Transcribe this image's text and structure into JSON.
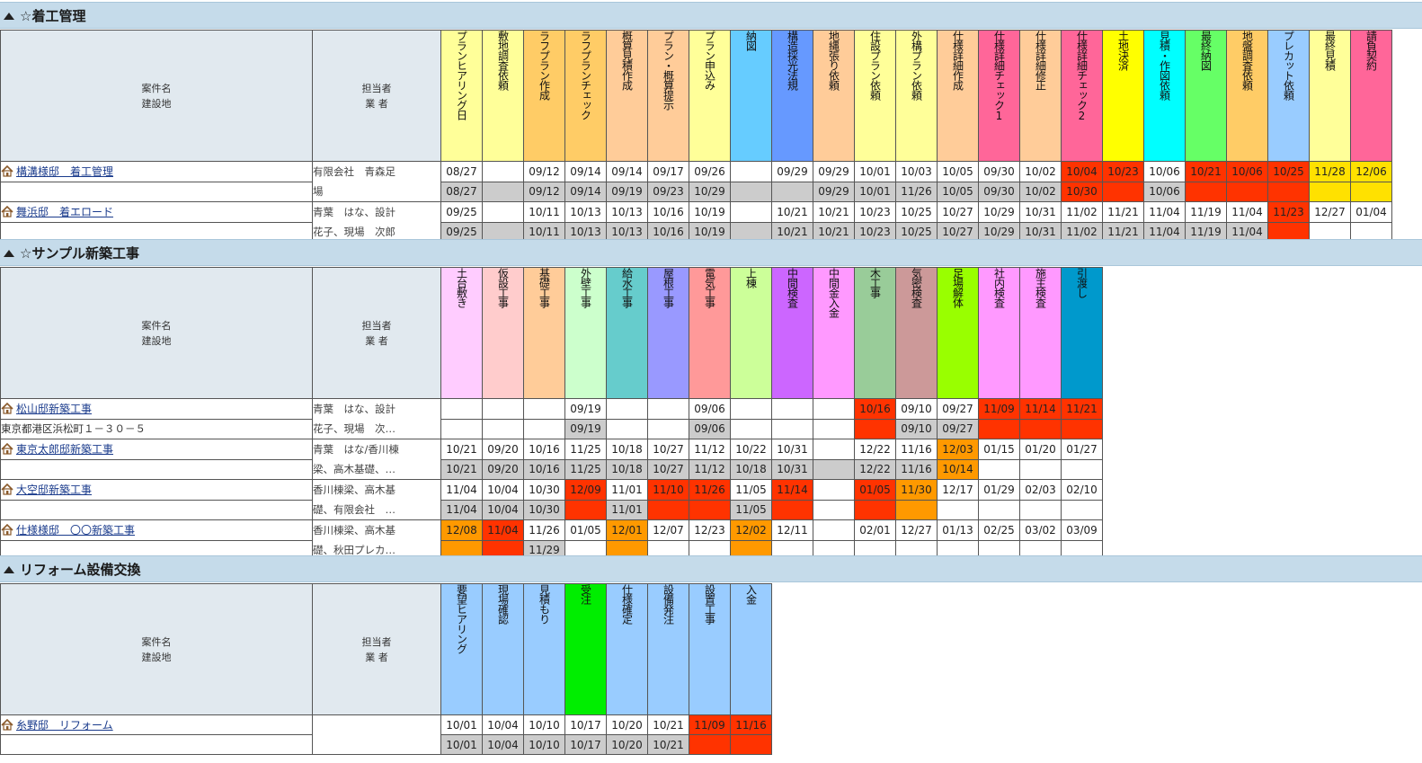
{
  "header_labels": {
    "case": "案件名",
    "site": "建設地",
    "mgr": "担当者",
    "vendor": "業 者"
  },
  "sections": [
    {
      "title": "☆着工管理",
      "stages": [
        {
          "label": "プランヒアリング日",
          "color": "#ffff99"
        },
        {
          "label": "敷地調査依頼",
          "color": "#ffff99"
        },
        {
          "label": "ラフプラン作成",
          "color": "#ffcc66"
        },
        {
          "label": "ラフプランチェック",
          "color": "#ffcc66"
        },
        {
          "label": "概算見積作成",
          "color": "#ffcc99"
        },
        {
          "label": "プラン・概算提示",
          "color": "#ffcc99"
        },
        {
          "label": "プラン申込み",
          "color": "#ffff99"
        },
        {
          "label": "納図",
          "color": "#66ccff"
        },
        {
          "label": "構造採光法規",
          "color": "#6699ff"
        },
        {
          "label": "地縄張り依頼",
          "color": "#ffcc99"
        },
        {
          "label": "住設プラン依頼",
          "color": "#ffff99"
        },
        {
          "label": "外構プラン依頼",
          "color": "#ffff99"
        },
        {
          "label": "仕様詳細作成",
          "color": "#ffcc99"
        },
        {
          "label": "仕様詳細チェック1",
          "color": "#ff6699"
        },
        {
          "label": "仕様詳細修正",
          "color": "#ffcc99"
        },
        {
          "label": "仕様詳細チェック2",
          "color": "#ff6699"
        },
        {
          "label": "土地決済",
          "color": "#ffff00"
        },
        {
          "label": "見積・作図依頼",
          "color": "#00ffff"
        },
        {
          "label": "最終納図",
          "color": "#66ff66"
        },
        {
          "label": "地盤調査依頼",
          "color": "#ffcc66"
        },
        {
          "label": "プレカット依頼",
          "color": "#99ccff"
        },
        {
          "label": "最終見積",
          "color": "#ffff99"
        },
        {
          "label": "請負契約",
          "color": "#ff6699"
        }
      ],
      "projects": [
        {
          "name": "構溝様邸　着工管理",
          "address": "",
          "manager": "有限会社　青森足\n場",
          "plan": [
            "08/27",
            "",
            "09/12",
            "09/14",
            "09/14",
            "09/17",
            "09/26",
            "",
            "09/29",
            "09/29",
            "10/01",
            "10/03",
            "10/05",
            "09/30",
            "10/02",
            "10/04",
            "10/23",
            "10/06",
            "10/21",
            "10/06",
            "10/25",
            "11/28",
            "12/06"
          ],
          "plan_status": [
            "",
            "",
            "",
            "",
            "",
            "",
            "",
            "",
            "",
            "",
            "",
            "",
            "",
            "",
            "",
            "late",
            "late",
            "",
            "late",
            "late",
            "late",
            "pend",
            "pend"
          ],
          "actual": [
            "08/27",
            "",
            "09/12",
            "09/14",
            "09/19",
            "09/23",
            "10/29",
            "",
            "",
            "09/29",
            "10/01",
            "11/26",
            "10/05",
            "09/30",
            "10/02",
            "10/30",
            "",
            "10/06",
            "",
            "",
            "",
            "",
            ""
          ],
          "actual_status": [
            "act",
            "act",
            "act",
            "act",
            "act",
            "act",
            "act",
            "act",
            "act",
            "act",
            "act",
            "act",
            "act",
            "act",
            "act",
            "late",
            "late",
            "act",
            "late",
            "late",
            "late",
            "pend",
            "pend"
          ]
        },
        {
          "name": "舞浜邸　着エロード",
          "address": "",
          "manager": "青葉　はな、設計\n花子、現場　次郎",
          "plan": [
            "09/25",
            "",
            "10/11",
            "10/13",
            "10/13",
            "10/16",
            "10/19",
            "",
            "10/21",
            "10/21",
            "10/23",
            "10/25",
            "10/27",
            "10/29",
            "10/31",
            "11/02",
            "11/21",
            "11/04",
            "11/19",
            "11/04",
            "11/23",
            "12/27",
            "01/04"
          ],
          "plan_status": [
            "",
            "",
            "",
            "",
            "",
            "",
            "",
            "",
            "",
            "",
            "",
            "",
            "",
            "",
            "",
            "",
            "",
            "",
            "",
            "",
            "late",
            "",
            ""
          ],
          "actual": [
            "09/25",
            "",
            "10/11",
            "10/13",
            "10/13",
            "10/16",
            "10/19",
            "",
            "10/21",
            "10/21",
            "10/23",
            "10/25",
            "10/27",
            "10/29",
            "10/31",
            "11/02",
            "11/21",
            "11/04",
            "11/19",
            "11/04",
            "",
            "",
            ""
          ],
          "actual_status": [
            "act",
            "act",
            "act",
            "act",
            "act",
            "act",
            "act",
            "act",
            "act",
            "act",
            "act",
            "act",
            "act",
            "act",
            "act",
            "act",
            "act",
            "act",
            "act",
            "act",
            "late",
            "",
            ""
          ]
        }
      ]
    },
    {
      "title": "☆サンプル新築工事",
      "stages": [
        {
          "label": "土台敷き",
          "color": "#ffccff"
        },
        {
          "label": "仮設工事",
          "color": "#ffcccc"
        },
        {
          "label": "基礎工事",
          "color": "#ffcc99"
        },
        {
          "label": "外壁工事",
          "color": "#ccffcc"
        },
        {
          "label": "給水工事",
          "color": "#66cccc"
        },
        {
          "label": "屋根工事",
          "color": "#9999ff"
        },
        {
          "label": "電気工事",
          "color": "#ff9999"
        },
        {
          "label": "上棟",
          "color": "#ccff99"
        },
        {
          "label": "中間検査",
          "color": "#cc66ff"
        },
        {
          "label": "中間金入金",
          "color": "#ff99ff"
        },
        {
          "label": "木工事",
          "color": "#99cc99"
        },
        {
          "label": "気密検査",
          "color": "#cc9999"
        },
        {
          "label": "足場解体",
          "color": "#99ff00"
        },
        {
          "label": "社内検査",
          "color": "#ff99ff"
        },
        {
          "label": "施主検査",
          "color": "#ff99ff"
        },
        {
          "label": "引渡し",
          "color": "#0099cc"
        }
      ],
      "projects": [
        {
          "name": "松山邸新築工事",
          "address": "東京都港区浜松町１－３０－５",
          "manager": "青葉　はな、設計\n花子、現場　次…",
          "plan": [
            "",
            "",
            "",
            "09/19",
            "",
            "",
            "09/06",
            "",
            "",
            "",
            "10/16",
            "09/10",
            "09/27",
            "11/09",
            "11/14",
            "11/21"
          ],
          "plan_status": [
            "",
            "",
            "",
            "",
            "",
            "",
            "",
            "",
            "",
            "",
            "late",
            "",
            "",
            "late",
            "late",
            "late"
          ],
          "actual": [
            "",
            "",
            "",
            "09/19",
            "",
            "",
            "09/06",
            "",
            "",
            "",
            "",
            "09/10",
            "09/27",
            "",
            "",
            ""
          ],
          "actual_status": [
            "",
            "",
            "",
            "act",
            "",
            "",
            "act",
            "",
            "",
            "",
            "late",
            "act",
            "act",
            "late",
            "late",
            "late"
          ]
        },
        {
          "name": "東京太郎邸新築工事",
          "address": "",
          "manager": "青葉　はな/香川棟\n梁、高木基礎、…",
          "plan": [
            "10/21",
            "09/20",
            "10/16",
            "11/25",
            "10/18",
            "10/27",
            "11/12",
            "10/22",
            "10/31",
            "",
            "12/22",
            "11/16",
            "12/03",
            "01/15",
            "01/20",
            "01/27"
          ],
          "plan_status": [
            "",
            "",
            "",
            "",
            "",
            "",
            "",
            "",
            "",
            "",
            "",
            "",
            "warn",
            "",
            "",
            ""
          ],
          "actual": [
            "10/21",
            "09/20",
            "10/16",
            "11/25",
            "10/18",
            "10/27",
            "11/12",
            "10/18",
            "10/31",
            "",
            "12/22",
            "11/16",
            "10/14",
            "",
            "",
            ""
          ],
          "actual_status": [
            "act",
            "act",
            "act",
            "act",
            "act",
            "act",
            "act",
            "act",
            "act",
            "act",
            "act",
            "act",
            "warn",
            "",
            "",
            ""
          ]
        },
        {
          "name": "大空邸新築工事",
          "address": "",
          "manager": "香川棟梁、高木基\n礎、有限会社　…",
          "plan": [
            "11/04",
            "10/04",
            "10/30",
            "12/09",
            "11/01",
            "11/10",
            "11/26",
            "11/05",
            "11/14",
            "",
            "01/05",
            "11/30",
            "12/17",
            "01/29",
            "02/03",
            "02/10"
          ],
          "plan_status": [
            "",
            "",
            "",
            "late",
            "",
            "late",
            "late",
            "",
            "late",
            "",
            "late",
            "warn",
            "",
            "",
            "",
            ""
          ],
          "actual": [
            "11/04",
            "10/04",
            "10/30",
            "",
            "11/01",
            "",
            "",
            "11/05",
            "",
            "",
            "",
            "",
            "",
            "",
            "",
            ""
          ],
          "actual_status": [
            "act",
            "act",
            "act",
            "late",
            "act",
            "late",
            "late",
            "act",
            "late",
            "",
            "late",
            "warn",
            "",
            "",
            "",
            ""
          ]
        },
        {
          "name": "仕様様邸　〇〇新築工事",
          "address": "",
          "manager": "香川棟梁、高木基\n礎、秋田プレカ…",
          "plan": [
            "12/08",
            "11/04",
            "11/26",
            "01/05",
            "12/01",
            "12/07",
            "12/23",
            "12/02",
            "12/11",
            "",
            "02/01",
            "12/27",
            "01/13",
            "02/25",
            "03/02",
            "03/09"
          ],
          "plan_status": [
            "warn",
            "late",
            "",
            "",
            "warn",
            "",
            "",
            "warn",
            "",
            "",
            "",
            "",
            "",
            "",
            "",
            ""
          ],
          "actual": [
            "",
            "",
            "11/29",
            "",
            "",
            "",
            "",
            "",
            "",
            "",
            "",
            "",
            "",
            "",
            "",
            ""
          ],
          "actual_status": [
            "warn",
            "late",
            "act",
            "",
            "warn",
            "",
            "",
            "warn",
            "",
            "",
            "",
            "",
            "",
            "",
            "",
            ""
          ]
        }
      ]
    },
    {
      "title": "リフォーム設備交換",
      "stages": [
        {
          "label": "要望ヒアリング",
          "color": "#99ccff"
        },
        {
          "label": "現場確認",
          "color": "#99ccff"
        },
        {
          "label": "見積もり",
          "color": "#99ccff"
        },
        {
          "label": "受注",
          "color": "#00ee00"
        },
        {
          "label": "仕様確定",
          "color": "#99ccff"
        },
        {
          "label": "設備発注",
          "color": "#99ccff"
        },
        {
          "label": "設置工事",
          "color": "#99ccff"
        },
        {
          "label": "入金",
          "color": "#99ccff"
        }
      ],
      "projects": [
        {
          "name": "糸野邸　リフォーム",
          "address": "",
          "manager": "",
          "plan": [
            "10/01",
            "10/04",
            "10/10",
            "10/17",
            "10/20",
            "10/21",
            "11/09",
            "11/16"
          ],
          "plan_status": [
            "",
            "",
            "",
            "",
            "",
            "",
            "late",
            "late"
          ],
          "actual": [
            "10/01",
            "10/04",
            "10/10",
            "10/17",
            "10/20",
            "10/21",
            "",
            ""
          ],
          "actual_status": [
            "act",
            "act",
            "act",
            "act",
            "act",
            "act",
            "late",
            "late"
          ]
        }
      ]
    }
  ]
}
